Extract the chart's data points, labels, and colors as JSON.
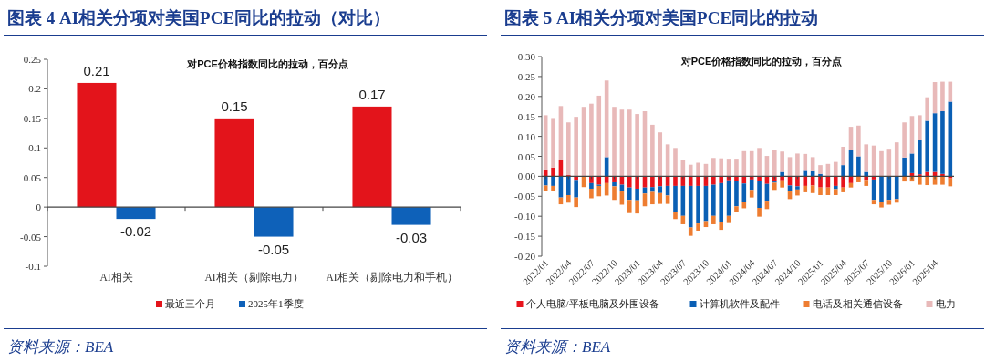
{
  "chart_data": [
    {
      "type": "bar",
      "title": "图表 4   AI相关分项对美国PCE同比的拉动（对比）",
      "subtitle": "对PCE价格指数同比的拉动，百分点",
      "categories": [
        "AI相关",
        "AI相关（剔除电力）",
        "AI相关（剔除电力和手机）"
      ],
      "series": [
        {
          "name": "最近三个月",
          "color": "#e3141b",
          "values": [
            0.21,
            0.15,
            0.17
          ]
        },
        {
          "name": "2025年1季度",
          "color": "#0e61b9",
          "values": [
            -0.02,
            -0.05,
            -0.03
          ]
        }
      ],
      "ylim": [
        -0.1,
        0.25
      ],
      "yticks": [
        -0.1,
        -0.05,
        0,
        0.05,
        0.1,
        0.15,
        0.2,
        0.25
      ],
      "data_labels": true,
      "legend": "bottom",
      "annotations": [
        "资料来源：BEA"
      ]
    },
    {
      "type": "bar",
      "title": "图表 5   AI相关分项对美国PCE同比的拉动",
      "subtitle": "对PCE价格指数同比的拉动，百分点",
      "categories": [
        "2022/01",
        null,
        null,
        "2022/04",
        null,
        null,
        "2022/07",
        null,
        null,
        "2022/10",
        null,
        null,
        "2023/01",
        null,
        null,
        "2023/04",
        null,
        null,
        "2023/07",
        null,
        null,
        "2023/10",
        null,
        null,
        "2024/01",
        null,
        null,
        "2024/04",
        null,
        null,
        "2024/07",
        null,
        null,
        "2024/10",
        null,
        null,
        "2025/01",
        null,
        null,
        "2025/04",
        null,
        null,
        "2025/07",
        null,
        null,
        "2025/10",
        null,
        null,
        "2026/01",
        null,
        null,
        "2026/04",
        null,
        null
      ],
      "series": [
        {
          "name": "个人电脑/平板电脑及外围设备",
          "color": "#e8141c",
          "values": [
            0.017,
            0.022,
            0.04,
            0.003,
            -0.009,
            0,
            -0.017,
            -0.021,
            -0.017,
            -0.015,
            -0.021,
            -0.028,
            -0.031,
            -0.028,
            -0.027,
            -0.025,
            -0.024,
            -0.024,
            -0.024,
            -0.024,
            -0.024,
            -0.024,
            -0.021,
            -0.017,
            -0.01,
            -0.011,
            -0.018,
            -0.008,
            -0.011,
            -0.019,
            -0.013,
            -0.01,
            -0.023,
            -0.025,
            -0.024,
            -0.023,
            -0.028,
            -0.028,
            -0.024,
            -0.028,
            -0.017,
            0,
            -0.009,
            -0.008,
            null,
            0,
            0,
            0,
            0.008,
            0.005,
            0.011,
            0.011,
            0.006,
            -0.005
          ]
        },
        {
          "name": "计算机软件及配件",
          "color": "#0a5fb4",
          "values": [
            -0.023,
            -0.024,
            -0.053,
            -0.047,
            -0.044,
            0,
            -0.014,
            -0.003,
            0.048,
            -0.01,
            -0.017,
            -0.031,
            -0.029,
            -0.015,
            -0.012,
            -0.017,
            -0.024,
            -0.066,
            -0.075,
            -0.104,
            -0.094,
            -0.088,
            -0.078,
            -0.098,
            -0.089,
            -0.064,
            -0.047,
            -0.026,
            -0.068,
            -0.042,
            -0.003,
            0.011,
            -0.015,
            -0.008,
            0.016,
            0.015,
            0.006,
            null,
            -0.008,
            0.028,
            0.065,
            0.05,
            0.011,
            -0.051,
            -0.065,
            -0.059,
            -0.057,
            0.047,
            0.049,
            0.085,
            0.128,
            0.147,
            0.157,
            0.187
          ]
        },
        {
          "name": "电话及相关通信设备",
          "color": "#ee7d31",
          "values": [
            -0.013,
            -0.013,
            -0.017,
            -0.019,
            -0.024,
            -0.027,
            -0.024,
            -0.026,
            -0.031,
            -0.034,
            -0.033,
            -0.033,
            -0.033,
            -0.032,
            -0.031,
            -0.027,
            -0.021,
            -0.017,
            -0.021,
            -0.021,
            -0.018,
            -0.015,
            -0.021,
            -0.019,
            -0.018,
            -0.014,
            -0.015,
            -0.019,
            -0.022,
            -0.021,
            -0.018,
            -0.018,
            -0.019,
            -0.015,
            -0.016,
            -0.019,
            -0.019,
            -0.019,
            -0.015,
            -0.012,
            -0.011,
            -0.015,
            -0.015,
            -0.011,
            -0.013,
            -0.012,
            -0.009,
            -0.013,
            -0.013,
            -0.021,
            -0.022,
            -0.021,
            -0.021,
            -0.02
          ]
        },
        {
          "name": "电力",
          "color": "#e8b9b9",
          "values": [
            0.136,
            0.124,
            0.136,
            0.132,
            0.149,
            0.174,
            0.182,
            0.202,
            0.192,
            0.174,
            0.167,
            0.167,
            0.156,
            0.163,
            0.129,
            0.11,
            0.08,
            0.071,
            0.042,
            0.029,
            0.034,
            0.031,
            0.046,
            0.045,
            0.044,
            0.044,
            0.063,
            0.063,
            0.071,
            0.051,
            0.065,
            0.051,
            0.048,
            0.057,
            0.04,
            0.033,
            0.022,
            0.031,
            0.036,
            0.046,
            0.059,
            0.077,
            0.069,
            0.077,
            0.063,
            0.069,
            0.085,
            0.088,
            0.094,
            0.063,
            0.059,
            0.078,
            0.074,
            0.05
          ]
        }
      ],
      "stacked": true,
      "ylim": [
        -0.2,
        0.3
      ],
      "yticks": [
        {
          "value": -0.2,
          "label": "-0.20"
        },
        {
          "value": -0.15,
          "label": "-0.15"
        },
        {
          "value": -0.1,
          "label": "-0.10"
        },
        {
          "value": -0.05,
          "label": "-0.05"
        },
        {
          "value": 0,
          "label": "0.00"
        },
        {
          "value": 0.05,
          "label": "0.05"
        },
        {
          "value": 0.1,
          "label": "0.10"
        },
        {
          "value": 0.15,
          "label": "0.15"
        },
        {
          "value": 0.2,
          "label": "0.20"
        },
        {
          "value": 0.25,
          "label": "0.25"
        },
        {
          "value": 0.3,
          "label": "0.30"
        }
      ],
      "legend": "bottom",
      "annotations": [
        "资料来源：BEA"
      ]
    }
  ]
}
